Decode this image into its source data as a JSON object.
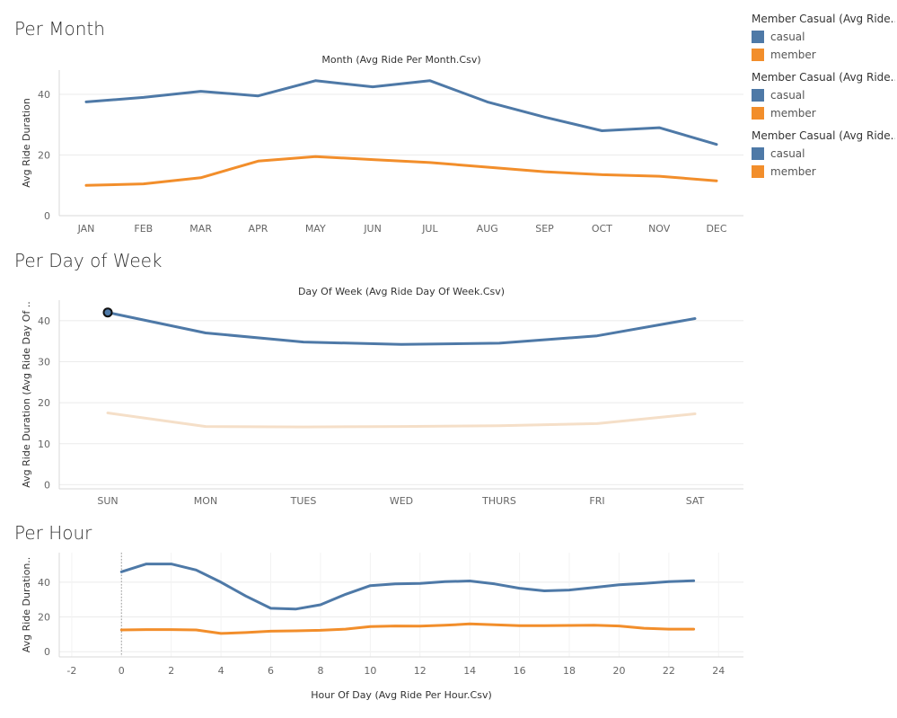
{
  "colors": {
    "casual": "#4e79a7",
    "member": "#f28e2b",
    "member_faded": "#f5dfc8",
    "axis_text": "#666666",
    "title_text": "#333333",
    "grid": "#ebebeb"
  },
  "legend": {
    "groups": [
      {
        "title": "Member Casual (Avg Ride..",
        "items": [
          {
            "label": "casual",
            "color_key": "casual"
          },
          {
            "label": "member",
            "color_key": "member"
          }
        ]
      },
      {
        "title": "Member Casual (Avg Ride..",
        "items": [
          {
            "label": "casual",
            "color_key": "casual"
          },
          {
            "label": "member",
            "color_key": "member"
          }
        ]
      },
      {
        "title": "Member Casual (Avg Ride..",
        "items": [
          {
            "label": "casual",
            "color_key": "casual"
          },
          {
            "label": "member",
            "color_key": "member"
          }
        ]
      }
    ]
  },
  "sections": {
    "month": {
      "title": "Per Month"
    },
    "dow": {
      "title": "Per Day of Week"
    },
    "hour": {
      "title": "Per Hour"
    }
  },
  "chart_data": [
    {
      "id": "month",
      "type": "line",
      "title": "Month (Avg Ride Per Month.Csv)",
      "xlabel": "",
      "ylabel": "Avg Ride Duration",
      "categories": [
        "JAN",
        "FEB",
        "MAR",
        "APR",
        "MAY",
        "JUN",
        "JUL",
        "AUG",
        "SEP",
        "OCT",
        "NOV",
        "DEC"
      ],
      "yticks": [
        0,
        20,
        40
      ],
      "ylim": [
        0,
        48
      ],
      "grid": true,
      "series": [
        {
          "name": "casual",
          "color_key": "casual",
          "values": [
            37.5,
            39.0,
            41.0,
            39.5,
            44.5,
            42.5,
            44.5,
            37.5,
            32.5,
            28.0,
            29.0,
            23.5
          ]
        },
        {
          "name": "member",
          "color_key": "member",
          "values": [
            10.0,
            10.5,
            12.5,
            18.0,
            19.5,
            18.5,
            17.5,
            16.0,
            14.5,
            13.5,
            13.0,
            11.5
          ]
        }
      ]
    },
    {
      "id": "dow",
      "type": "line",
      "title": "Day Of Week (Avg Ride Day Of Week.Csv)",
      "xlabel": "",
      "ylabel": "Avg Ride Duration (Avg Ride Day Of ..",
      "categories": [
        "SUN",
        "MON",
        "TUES",
        "WED",
        "THURS",
        "FRI",
        "SAT"
      ],
      "yticks": [
        0,
        10,
        20,
        30,
        40
      ],
      "ylim": [
        -1,
        45
      ],
      "grid": true,
      "highlight_point": {
        "series": "casual",
        "category": "SUN"
      },
      "series": [
        {
          "name": "casual",
          "color_key": "casual",
          "values": [
            42.0,
            37.0,
            34.8,
            34.2,
            34.5,
            36.3,
            40.5
          ]
        },
        {
          "name": "member",
          "color_key": "member_faded",
          "values": [
            17.5,
            14.2,
            14.1,
            14.2,
            14.4,
            14.9,
            17.3
          ]
        }
      ]
    },
    {
      "id": "hour",
      "type": "line",
      "title": "",
      "xlabel": "Hour Of Day (Avg Ride Per Hour.Csv)",
      "ylabel": "Avg Ride Duration..",
      "x": [
        0,
        1,
        2,
        3,
        4,
        5,
        6,
        7,
        8,
        9,
        10,
        11,
        12,
        13,
        14,
        15,
        16,
        17,
        18,
        19,
        20,
        21,
        22,
        23
      ],
      "xticks": [
        -2,
        0,
        2,
        4,
        6,
        8,
        10,
        12,
        14,
        16,
        18,
        20,
        22,
        24
      ],
      "xlim": [
        -2.5,
        25
      ],
      "yticks": [
        0,
        20,
        40
      ],
      "ylim": [
        -3,
        57
      ],
      "grid": true,
      "reference_line_x": 0,
      "series": [
        {
          "name": "casual",
          "color_key": "casual",
          "values": [
            46.0,
            50.5,
            50.5,
            47.0,
            40.0,
            32.0,
            25.0,
            24.5,
            27.0,
            33.0,
            38.0,
            39.0,
            39.3,
            40.3,
            40.7,
            39.0,
            36.5,
            35.0,
            35.5,
            37.0,
            38.5,
            39.3,
            40.3,
            40.8
          ]
        },
        {
          "name": "member",
          "color_key": "member",
          "values": [
            12.5,
            12.7,
            12.7,
            12.5,
            10.5,
            11.0,
            11.8,
            12.0,
            12.3,
            13.0,
            14.5,
            14.8,
            14.7,
            15.2,
            16.0,
            15.5,
            15.0,
            15.0,
            15.1,
            15.2,
            14.8,
            13.5,
            13.0,
            13.0
          ]
        }
      ]
    }
  ]
}
